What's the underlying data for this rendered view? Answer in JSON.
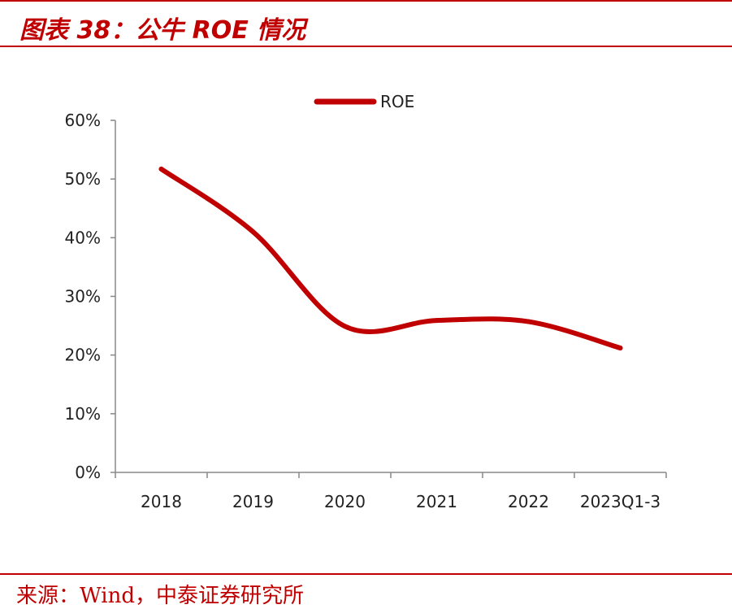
{
  "header": {
    "title": "图表 38：公牛 ROE 情况"
  },
  "footer": {
    "source": "来源：Wind，中泰证券研究所"
  },
  "colors": {
    "accent": "#c00000",
    "axis": "#888888",
    "text": "#222222"
  },
  "chart_data": {
    "type": "line",
    "title": "",
    "xlabel": "",
    "ylabel": "",
    "categories": [
      "2018",
      "2019",
      "2020",
      "2021",
      "2022",
      "2023Q1-3"
    ],
    "series": [
      {
        "name": "ROE",
        "values": [
          51.7,
          41.0,
          24.9,
          25.9,
          25.7,
          21.2
        ],
        "color": "#c00000"
      }
    ],
    "ylim": [
      0,
      60
    ],
    "yticks": [
      0,
      10,
      20,
      30,
      40,
      50,
      60
    ],
    "ytick_labels": [
      "0%",
      "10%",
      "20%",
      "30%",
      "40%",
      "50%",
      "60%"
    ],
    "legend_position": "top-center",
    "grid": false
  }
}
